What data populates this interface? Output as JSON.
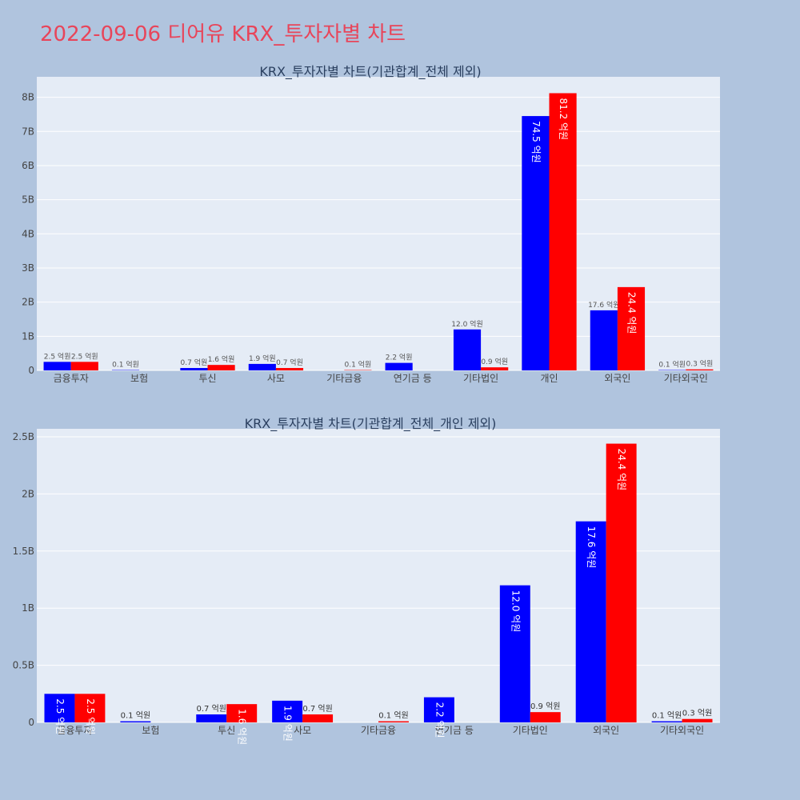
{
  "page_title": "2022-09-06 디어유 KRX_투자자별 차트",
  "colors": {
    "buy": "#0000ff",
    "sell": "#ff0000",
    "plot_bg": "#e5ecf6",
    "page_bg": "#b0c4de",
    "title": "#e8455a"
  },
  "chart_data": [
    {
      "type": "bar",
      "title": "KRX_투자자별 차트(기관합계_전체 제외)",
      "categories": [
        "금융투자",
        "보험",
        "투신",
        "사모",
        "기타금융",
        "연기금 등",
        "기타법인",
        "개인",
        "외국인",
        "기타외국인"
      ],
      "series": [
        {
          "values": [
            0.25,
            0.01,
            0.07,
            0.19,
            0,
            0.22,
            1.2,
            7.45,
            1.76,
            0.01
          ],
          "labels": [
            "2.5 억원",
            "0.1 억원",
            "0.7 억원",
            "1.9 억원",
            "",
            "2.2 억원",
            "12.0 억원",
            "74.5 억원",
            "17.6 억원",
            "0.1 억원"
          ]
        },
        {
          "values": [
            0.25,
            0,
            0.16,
            0.07,
            0.01,
            0,
            0.09,
            8.12,
            2.44,
            0.03
          ],
          "labels": [
            "2.5 억원",
            "",
            "1.6 억원",
            "0.7 억원",
            "0.1 억원",
            "",
            "0.9 억원",
            "81.2 억원",
            "24.4 억원",
            "0.3 억원"
          ]
        }
      ],
      "ylim": [
        0,
        8.6
      ],
      "yticks": [
        0,
        1,
        2,
        3,
        4,
        5,
        6,
        7,
        8
      ],
      "ytick_labels": [
        "0",
        "1B",
        "2B",
        "3B",
        "4B",
        "5B",
        "6B",
        "7B",
        "8B"
      ],
      "grid": true
    },
    {
      "type": "bar",
      "title": "KRX_투자자별 차트(기관합계_전체_개인 제외)",
      "categories": [
        "금융투자",
        "보험",
        "투신",
        "사모",
        "기타금융",
        "연기금 등",
        "기타법인",
        "외국인",
        "기타외국인"
      ],
      "series": [
        {
          "values": [
            0.25,
            0.01,
            0.07,
            0.19,
            0,
            0.22,
            1.2,
            1.76,
            0.01
          ],
          "labels": [
            "2.5 억원",
            "0.1 억원",
            "0.7 억원",
            "1.9 억원",
            "",
            "2.2 억원",
            "12.0 억원",
            "17.6 억원",
            "0.1 억원"
          ]
        },
        {
          "values": [
            0.25,
            0,
            0.16,
            0.07,
            0.01,
            0,
            0.09,
            2.44,
            0.03
          ],
          "labels": [
            "2.5 억원",
            "",
            "1.6 억원",
            "0.7 억원",
            "0.1 억원",
            "",
            "0.9 억원",
            "24.4 억원",
            "0.3 억원"
          ]
        }
      ],
      "ylim": [
        0,
        2.57
      ],
      "yticks": [
        0,
        0.5,
        1,
        1.5,
        2,
        2.5
      ],
      "ytick_labels": [
        "0",
        "0.5B",
        "1B",
        "1.5B",
        "2B",
        "2.5B"
      ],
      "grid": true
    }
  ]
}
